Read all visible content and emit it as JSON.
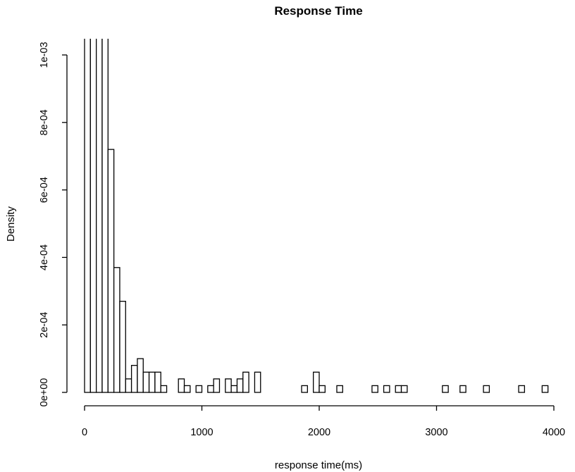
{
  "chart_data": {
    "type": "bar",
    "title": "Response Time",
    "xlabel": "response time(ms)",
    "ylabel": "Density",
    "bin_width": 50,
    "xlim": [
      0,
      4100
    ],
    "ylim": [
      0,
      0.00105
    ],
    "x_ticks": [
      0,
      1000,
      2000,
      3000,
      4000
    ],
    "x_tick_labels": [
      "0",
      "1000",
      "2000",
      "3000",
      "4000"
    ],
    "y_ticks": [
      0,
      0.0002,
      0.0004,
      0.0006,
      0.0008,
      0.001
    ],
    "y_tick_labels": [
      "0e+00",
      "2e-04",
      "4e-04",
      "6e-04",
      "8e-04",
      "1e-03"
    ],
    "grid": false,
    "legend": "none",
    "bins": [
      {
        "x0": 0,
        "x1": 50,
        "density": 0.0011
      },
      {
        "x0": 50,
        "x1": 100,
        "density": 0.0011
      },
      {
        "x0": 100,
        "x1": 150,
        "density": 0.0011
      },
      {
        "x0": 150,
        "x1": 200,
        "density": 0.0011
      },
      {
        "x0": 200,
        "x1": 250,
        "density": 0.00072
      },
      {
        "x0": 250,
        "x1": 300,
        "density": 0.00037
      },
      {
        "x0": 300,
        "x1": 350,
        "density": 0.00027
      },
      {
        "x0": 350,
        "x1": 400,
        "density": 4e-05
      },
      {
        "x0": 400,
        "x1": 450,
        "density": 8e-05
      },
      {
        "x0": 450,
        "x1": 500,
        "density": 0.0001
      },
      {
        "x0": 500,
        "x1": 550,
        "density": 6e-05
      },
      {
        "x0": 550,
        "x1": 600,
        "density": 6e-05
      },
      {
        "x0": 600,
        "x1": 650,
        "density": 6e-05
      },
      {
        "x0": 650,
        "x1": 700,
        "density": 2e-05
      },
      {
        "x0": 800,
        "x1": 850,
        "density": 4e-05
      },
      {
        "x0": 850,
        "x1": 900,
        "density": 2e-05
      },
      {
        "x0": 950,
        "x1": 1000,
        "density": 2e-05
      },
      {
        "x0": 1050,
        "x1": 1100,
        "density": 2e-05
      },
      {
        "x0": 1100,
        "x1": 1150,
        "density": 4e-05
      },
      {
        "x0": 1200,
        "x1": 1250,
        "density": 4e-05
      },
      {
        "x0": 1250,
        "x1": 1300,
        "density": 2e-05
      },
      {
        "x0": 1300,
        "x1": 1350,
        "density": 4e-05
      },
      {
        "x0": 1350,
        "x1": 1400,
        "density": 6e-05
      },
      {
        "x0": 1450,
        "x1": 1500,
        "density": 6e-05
      },
      {
        "x0": 1850,
        "x1": 1900,
        "density": 2e-05
      },
      {
        "x0": 1950,
        "x1": 2000,
        "density": 6e-05
      },
      {
        "x0": 2000,
        "x1": 2050,
        "density": 2e-05
      },
      {
        "x0": 2150,
        "x1": 2200,
        "density": 2e-05
      },
      {
        "x0": 2450,
        "x1": 2500,
        "density": 2e-05
      },
      {
        "x0": 2550,
        "x1": 2600,
        "density": 2e-05
      },
      {
        "x0": 2650,
        "x1": 2700,
        "density": 2e-05
      },
      {
        "x0": 2700,
        "x1": 2750,
        "density": 2e-05
      },
      {
        "x0": 3050,
        "x1": 3100,
        "density": 2e-05
      },
      {
        "x0": 3200,
        "x1": 3250,
        "density": 2e-05
      },
      {
        "x0": 3400,
        "x1": 3450,
        "density": 2e-05
      },
      {
        "x0": 3700,
        "x1": 3750,
        "density": 2e-05
      },
      {
        "x0": 3900,
        "x1": 3950,
        "density": 2e-05
      }
    ]
  }
}
